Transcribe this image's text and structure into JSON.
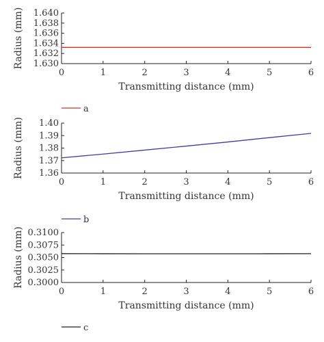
{
  "chart_data": [
    {
      "type": "line",
      "xlabel": "Transmitting distance (mm)",
      "ylabel": "Radius (mm)",
      "xlim": [
        0,
        6
      ],
      "ylim": [
        1.63,
        1.64
      ],
      "x_ticks": [
        "0",
        "1",
        "2",
        "3",
        "4",
        "5",
        "6"
      ],
      "y_ticks": [
        "1.630",
        "1.632",
        "1.634",
        "1.636",
        "1.638",
        "1.640"
      ],
      "legend_position": "below",
      "grid": false,
      "series": [
        {
          "name": "a",
          "color": "#c0392b",
          "x": [
            0,
            1,
            2,
            3,
            4,
            5,
            6
          ],
          "y": [
            1.6332,
            1.6332,
            1.6332,
            1.6332,
            1.6332,
            1.6332,
            1.6332
          ]
        }
      ]
    },
    {
      "type": "line",
      "xlabel": "Transmitting distance (mm)",
      "ylabel": "Radius (mm)",
      "xlim": [
        0,
        6
      ],
      "ylim": [
        1.36,
        1.4
      ],
      "x_ticks": [
        "0",
        "1",
        "2",
        "3",
        "4",
        "5",
        "6"
      ],
      "y_ticks": [
        "1.36",
        "1.37",
        "1.38",
        "1.39",
        "1.40"
      ],
      "legend_position": "below",
      "grid": false,
      "series": [
        {
          "name": "b",
          "color": "#3b3f9e",
          "x": [
            0,
            1,
            2,
            3,
            4,
            5,
            6
          ],
          "y": [
            1.3722,
            1.3752,
            1.3784,
            1.3816,
            1.3849,
            1.3884,
            1.3918
          ]
        }
      ]
    },
    {
      "type": "line",
      "xlabel": "Transmitting distance (mm)",
      "ylabel": "Radius (mm)",
      "xlim": [
        0,
        6
      ],
      "ylim": [
        0.3,
        0.31
      ],
      "x_ticks": [
        "0",
        "1",
        "2",
        "3",
        "4",
        "5",
        "6"
      ],
      "y_ticks": [
        "0.3000",
        "0.3025",
        "0.3050",
        "0.3075",
        "0.3100"
      ],
      "legend_position": "below",
      "grid": false,
      "series": [
        {
          "name": "c",
          "color": "#222222",
          "x": [
            0,
            1,
            2,
            3,
            4,
            5,
            6
          ],
          "y": [
            0.30578,
            0.30576,
            0.30575,
            0.30575,
            0.30575,
            0.30576,
            0.30577
          ]
        }
      ]
    }
  ]
}
